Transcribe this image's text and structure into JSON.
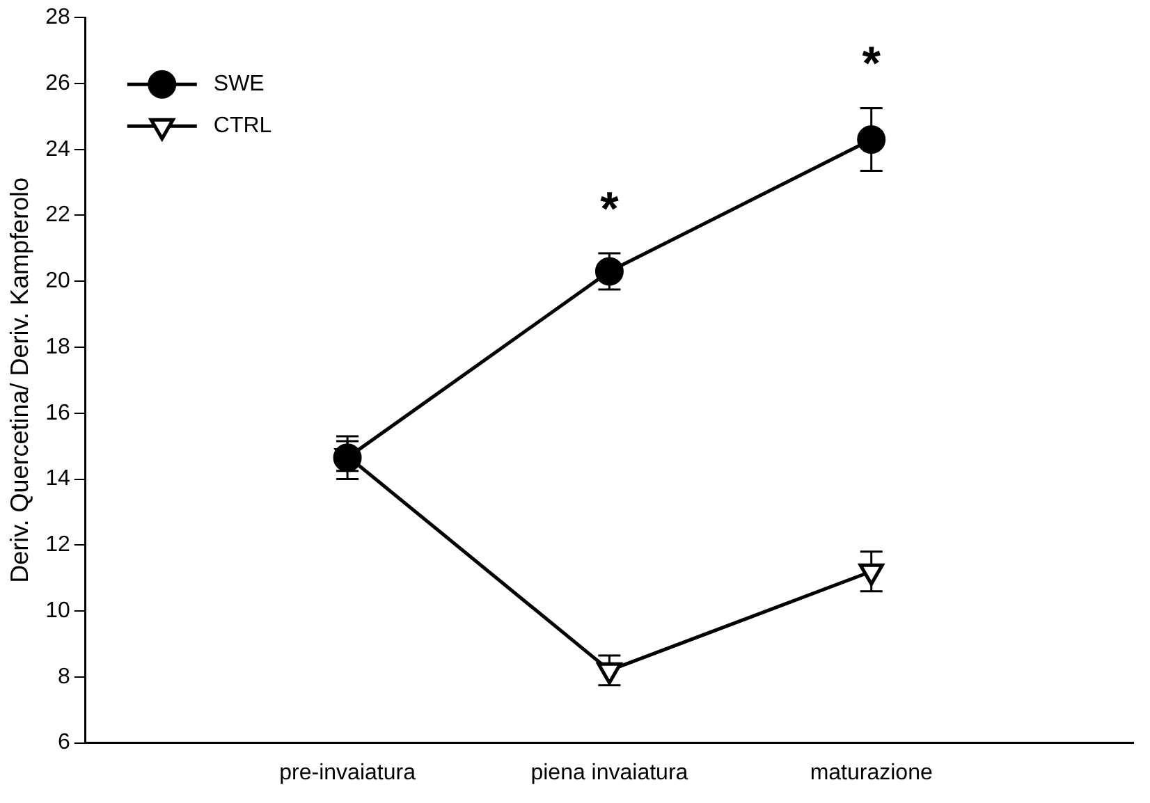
{
  "chart_data": {
    "type": "line",
    "ylabel": "Deriv. Quercetina/ Deriv. Kampferolo",
    "categories": [
      null,
      "pre-invaiatura",
      "piena invaiatura",
      "maturazione",
      null
    ],
    "series": [
      {
        "name": "SWE",
        "color": "#000000",
        "marker": "circle",
        "values": [
          null,
          14.65,
          20.3,
          24.3,
          null
        ],
        "errors": [
          null,
          0.65,
          0.55,
          0.95,
          null
        ]
      },
      {
        "name": "CTRL",
        "color": "#000000",
        "marker": "triangle",
        "values": [
          null,
          14.7,
          8.2,
          11.2,
          null
        ],
        "errors": [
          null,
          0.45,
          0.45,
          0.6,
          null
        ]
      }
    ],
    "ylim": [
      6,
      28
    ],
    "yticks": [
      6,
      8,
      10,
      12,
      14,
      16,
      18,
      20,
      22,
      24,
      26,
      28
    ],
    "grid": false,
    "legend": "top left",
    "line_style": "solid",
    "annotations": [
      "*",
      "*"
    ]
  }
}
